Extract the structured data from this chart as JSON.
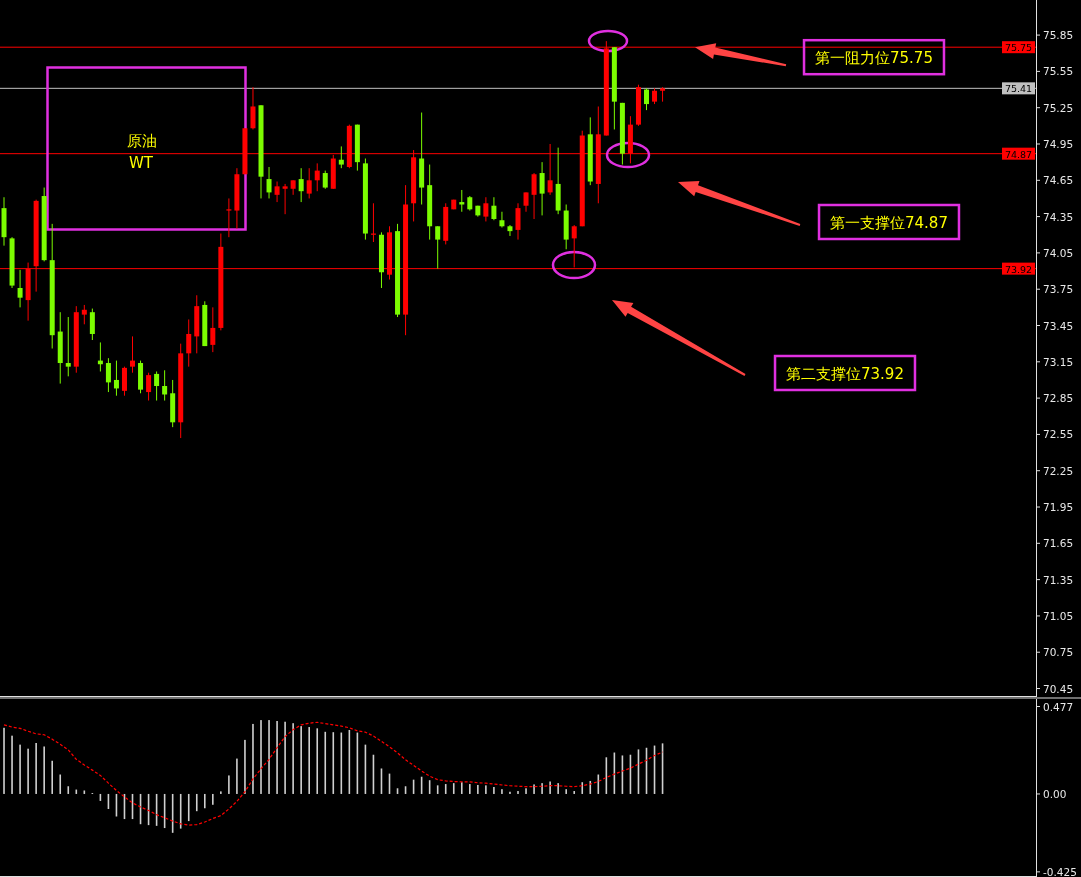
{
  "chart_data": [
    {
      "type": "candlestick",
      "tick_labels": "y",
      "categories": [
        null,
        null,
        null,
        null,
        null,
        null,
        null,
        null,
        null,
        null,
        null,
        null,
        null,
        null,
        null,
        null,
        null,
        null,
        null,
        null,
        null,
        null,
        null,
        null,
        null,
        null,
        null,
        null,
        null,
        null,
        null,
        null,
        null,
        null,
        null,
        null,
        null,
        null,
        null,
        null,
        null,
        null,
        null,
        null,
        null,
        null,
        null,
        null,
        null,
        null,
        null,
        null,
        null,
        null,
        null,
        null,
        null,
        null,
        null,
        null,
        null,
        null,
        null,
        null,
        null,
        null,
        null,
        null,
        null,
        null,
        null,
        null,
        null,
        null,
        null,
        null,
        null,
        null,
        null,
        null,
        null,
        null,
        null,
        null,
        null,
        null,
        null,
        null,
        null,
        null,
        null,
        null,
        null,
        null,
        null,
        null,
        null,
        null,
        null,
        null,
        null,
        null,
        null,
        null,
        null,
        null,
        null,
        null,
        null,
        null,
        null,
        null,
        null,
        null,
        null,
        null,
        null,
        null,
        null,
        null,
        null,
        null,
        null,
        null,
        null,
        null,
        null,
        null,
        null
      ],
      "ohlc": [
        [
          74.42,
          74.51,
          74.11,
          74.18
        ],
        [
          74.17,
          74.18,
          73.76,
          73.78
        ],
        [
          73.76,
          73.91,
          73.6,
          73.68
        ],
        [
          73.66,
          73.97,
          73.49,
          73.92
        ],
        [
          73.94,
          74.49,
          73.73,
          74.48
        ],
        [
          74.52,
          74.59,
          73.98,
          73.99
        ],
        [
          73.99,
          74.29,
          73.26,
          73.37
        ],
        [
          73.4,
          73.56,
          72.97,
          73.14
        ],
        [
          73.14,
          73.52,
          73.03,
          73.11
        ],
        [
          73.11,
          73.61,
          73.06,
          73.56
        ],
        [
          73.54,
          73.62,
          73.46,
          73.58
        ],
        [
          73.56,
          73.59,
          73.33,
          73.38
        ],
        [
          73.16,
          73.31,
          73.07,
          73.13
        ],
        [
          73.14,
          73.18,
          72.9,
          72.98
        ],
        [
          73.0,
          73.16,
          72.87,
          72.93
        ],
        [
          72.91,
          73.11,
          72.87,
          73.1
        ],
        [
          73.11,
          73.36,
          73.06,
          73.16
        ],
        [
          73.14,
          73.16,
          72.89,
          72.92
        ],
        [
          72.9,
          73.06,
          72.83,
          73.04
        ],
        [
          73.05,
          73.07,
          72.83,
          72.95
        ],
        [
          72.95,
          73.08,
          72.83,
          72.88
        ],
        [
          72.89,
          73.0,
          72.61,
          72.65
        ],
        [
          72.65,
          73.3,
          72.52,
          73.22
        ],
        [
          73.22,
          73.5,
          73.11,
          73.38
        ],
        [
          73.36,
          73.7,
          73.22,
          73.61
        ],
        [
          73.62,
          73.65,
          73.28,
          73.28
        ],
        [
          73.29,
          73.6,
          73.23,
          73.43
        ],
        [
          73.43,
          74.21,
          73.41,
          74.1
        ],
        [
          74.4,
          74.5,
          74.18,
          74.41
        ],
        [
          74.4,
          74.75,
          74.25,
          74.7
        ],
        [
          74.7,
          75.08,
          74.7,
          75.08
        ],
        [
          75.08,
          75.42,
          75.07,
          75.26
        ],
        [
          75.27,
          75.27,
          74.5,
          74.68
        ],
        [
          74.66,
          74.76,
          74.5,
          74.55
        ],
        [
          74.53,
          74.64,
          74.47,
          74.6
        ],
        [
          74.58,
          74.62,
          74.37,
          74.6
        ],
        [
          74.58,
          74.65,
          74.53,
          74.65
        ],
        [
          74.66,
          74.75,
          74.47,
          74.56
        ],
        [
          74.54,
          74.75,
          74.5,
          74.65
        ],
        [
          74.65,
          74.79,
          74.56,
          74.73
        ],
        [
          74.71,
          74.73,
          74.58,
          74.59
        ],
        [
          74.58,
          74.86,
          74.58,
          74.83
        ],
        [
          74.82,
          74.93,
          74.75,
          74.78
        ],
        [
          74.76,
          75.11,
          74.75,
          75.1
        ],
        [
          75.11,
          75.11,
          74.73,
          74.8
        ],
        [
          74.79,
          74.83,
          74.16,
          74.21
        ],
        [
          74.2,
          74.46,
          74.14,
          74.21
        ],
        [
          74.2,
          74.22,
          73.76,
          73.89
        ],
        [
          73.87,
          74.27,
          73.83,
          74.22
        ],
        [
          74.23,
          74.29,
          73.52,
          73.54
        ],
        [
          73.54,
          74.61,
          73.37,
          74.45
        ],
        [
          74.46,
          74.9,
          74.31,
          74.84
        ],
        [
          74.83,
          75.21,
          74.45,
          74.59
        ],
        [
          74.61,
          74.78,
          74.16,
          74.27
        ],
        [
          74.27,
          74.27,
          73.92,
          74.16
        ],
        [
          74.15,
          74.46,
          74.12,
          74.43
        ],
        [
          74.41,
          74.49,
          74.41,
          74.49
        ],
        [
          74.47,
          74.57,
          74.39,
          74.45
        ],
        [
          74.51,
          74.52,
          74.4,
          74.41
        ],
        [
          74.44,
          74.44,
          74.35,
          74.36
        ],
        [
          74.35,
          74.51,
          74.31,
          74.46
        ],
        [
          74.44,
          74.51,
          74.32,
          74.33
        ],
        [
          74.32,
          74.39,
          74.26,
          74.27
        ],
        [
          74.27,
          74.28,
          74.19,
          74.23
        ],
        [
          74.24,
          74.46,
          74.16,
          74.42
        ],
        [
          74.44,
          74.55,
          74.39,
          74.55
        ],
        [
          74.53,
          74.71,
          74.33,
          74.7
        ],
        [
          74.71,
          74.8,
          74.36,
          74.54
        ],
        [
          74.55,
          74.95,
          74.53,
          74.65
        ],
        [
          74.62,
          74.92,
          74.37,
          74.4
        ],
        [
          74.4,
          74.45,
          74.08,
          74.16
        ],
        [
          74.17,
          74.28,
          73.93,
          74.27
        ],
        [
          74.27,
          75.06,
          74.27,
          75.02
        ],
        [
          75.03,
          75.17,
          74.61,
          74.64
        ],
        [
          74.62,
          75.26,
          74.46,
          75.03
        ],
        [
          75.02,
          75.8,
          75.02,
          75.74
        ],
        [
          75.75,
          75.75,
          75.07,
          75.3
        ],
        [
          75.29,
          75.29,
          74.78,
          74.87
        ],
        [
          74.87,
          75.18,
          74.79,
          75.11
        ],
        [
          75.11,
          75.44,
          75.1,
          75.42
        ],
        [
          75.4,
          75.41,
          75.23,
          75.28
        ],
        [
          75.3,
          75.41,
          75.28,
          75.39
        ],
        [
          75.39,
          75.42,
          75.3,
          75.41
        ],
        null,
        null,
        null,
        null,
        null,
        null,
        null,
        null,
        null,
        null,
        null,
        null,
        null,
        null,
        null,
        null,
        null,
        null,
        null,
        null,
        null,
        null,
        null,
        null,
        null,
        null,
        null,
        null,
        null,
        null,
        null,
        null,
        null,
        null,
        null,
        null,
        null,
        null,
        null,
        null,
        null,
        null,
        null,
        null,
        null,
        null
      ],
      "colors": [
        "#7cfc00",
        "#7cfc00",
        "#7cfc00",
        "#ff0000",
        "#ff0000",
        "#7cfc00",
        "#7cfc00",
        "#7cfc00",
        "#7cfc00",
        "#ff0000",
        "#ff0000",
        "#7cfc00",
        "#7cfc00",
        "#7cfc00",
        "#7cfc00",
        "#ff0000",
        "#ff0000",
        "#7cfc00",
        "#ff0000",
        "#7cfc00",
        "#7cfc00",
        "#7cfc00",
        "#ff0000",
        "#ff0000",
        "#ff0000",
        "#7cfc00",
        "#ff0000",
        "#ff0000",
        "#ff0000",
        "#ff0000",
        "#ff0000",
        "#ff0000",
        "#7cfc00",
        "#7cfc00",
        "#ff0000",
        "#ff0000",
        "#ff0000",
        "#7cfc00",
        "#ff0000",
        "#ff0000",
        "#7cfc00",
        "#ff0000",
        "#7cfc00",
        "#ff0000",
        "#7cfc00",
        "#7cfc00",
        "#ff0000",
        "#7cfc00",
        "#ff0000",
        "#7cfc00",
        "#ff0000",
        "#ff0000",
        "#7cfc00",
        "#7cfc00",
        "#7cfc00",
        "#ff0000",
        "#ff0000",
        "#7cfc00",
        "#7cfc00",
        "#7cfc00",
        "#ff0000",
        "#7cfc00",
        "#7cfc00",
        "#7cfc00",
        "#ff0000",
        "#ff0000",
        "#ff0000",
        "#7cfc00",
        "#ff0000",
        "#7cfc00",
        "#7cfc00",
        "#ff0000",
        "#ff0000",
        "#7cfc00",
        "#ff0000",
        "#ff0000",
        "#7cfc00",
        "#7cfc00",
        "#ff0000",
        "#ff0000",
        "#7cfc00",
        "#ff0000",
        "#ff0000",
        null,
        null,
        null,
        null,
        null,
        null,
        null,
        null,
        null,
        null,
        null,
        null,
        null,
        null,
        null,
        null,
        null,
        null,
        null,
        null,
        null,
        null,
        null,
        null,
        null,
        null,
        null,
        null,
        null,
        null,
        null,
        null,
        null,
        null,
        null,
        null,
        null,
        null,
        null,
        null,
        null,
        null,
        null,
        null,
        null,
        null
      ],
      "ylim": [
        70.38,
        76.14
      ],
      "yticks": [
        75.85,
        75.55,
        75.25,
        74.95,
        74.65,
        74.35,
        74.05,
        73.75,
        73.45,
        73.15,
        72.85,
        72.55,
        72.25,
        71.95,
        71.65,
        71.35,
        71.05,
        70.75,
        70.45
      ],
      "ref_lines": [
        {
          "axis": "y",
          "value": 75.75,
          "label": "75.75",
          "color": "#ff0000"
        },
        {
          "axis": "y",
          "value": 75.41,
          "label": "75.41",
          "color": "#c0c0c0"
        },
        {
          "axis": "y",
          "value": 74.87,
          "label": "74.87",
          "color": "#ff0000"
        },
        {
          "axis": "y",
          "value": 73.92,
          "label": "73.92",
          "color": "#ff0000"
        }
      ],
      "annotations": [
        "原油",
        "WT",
        {
          "text": "第一阻力位75.75",
          "y": 75.75
        },
        "第一支撑位74.87",
        "第二支撑位73.92"
      ]
    },
    {
      "type": "bar",
      "tick_labels": "y",
      "categories": [
        null,
        null,
        null,
        null,
        null,
        null,
        null,
        null,
        null,
        null,
        null,
        null,
        null,
        null,
        null,
        null,
        null,
        null,
        null,
        null,
        null,
        null,
        null,
        null,
        null,
        null,
        null,
        null,
        null,
        null,
        null,
        null,
        null,
        null,
        null,
        null,
        null,
        null,
        null,
        null,
        null,
        null,
        null,
        null,
        null,
        null,
        null,
        null,
        null,
        null,
        null,
        null,
        null,
        null,
        null,
        null,
        null,
        null,
        null,
        null,
        null,
        null,
        null,
        null,
        null,
        null,
        null,
        null,
        null,
        null,
        null,
        null,
        null,
        null,
        null,
        null,
        null,
        null,
        null,
        null,
        null,
        null,
        null,
        null,
        null,
        null,
        null,
        null,
        null,
        null,
        null,
        null,
        null,
        null,
        null,
        null,
        null,
        null,
        null,
        null,
        null,
        null,
        null,
        null,
        null,
        null,
        null,
        null,
        null,
        null,
        null,
        null,
        null,
        null,
        null,
        null,
        null,
        null,
        null,
        null,
        null,
        null,
        null,
        null,
        null,
        null,
        null,
        null,
        null
      ],
      "series": [
        {
          "type": "bar",
          "color": "#d0d0d0",
          "values": [
            0.361,
            0.318,
            0.269,
            0.247,
            0.278,
            0.259,
            0.181,
            0.106,
            0.042,
            0.024,
            0.019,
            0.005,
            -0.038,
            -0.082,
            -0.123,
            -0.137,
            -0.137,
            -0.165,
            -0.17,
            -0.174,
            -0.186,
            -0.212,
            -0.189,
            -0.148,
            -0.094,
            -0.078,
            -0.059,
            0.014,
            0.101,
            0.193,
            0.295,
            0.382,
            0.403,
            0.403,
            0.398,
            0.394,
            0.386,
            0.37,
            0.365,
            0.358,
            0.339,
            0.337,
            0.335,
            0.349,
            0.335,
            0.269,
            0.214,
            0.139,
            0.111,
            0.031,
            0.042,
            0.078,
            0.094,
            0.075,
            0.047,
            0.054,
            0.059,
            0.064,
            0.054,
            0.049,
            0.047,
            0.038,
            0.026,
            0.012,
            0.016,
            0.031,
            0.052,
            0.059,
            0.068,
            0.059,
            0.026,
            0.016,
            0.064,
            0.071,
            0.106,
            0.2,
            0.226,
            0.21,
            0.214,
            0.243,
            0.252,
            0.264,
            0.276,
            null,
            null,
            null,
            null,
            null,
            null,
            null,
            null,
            null,
            null,
            null,
            null,
            null,
            null,
            null,
            null,
            null,
            null,
            null,
            null,
            null,
            null,
            null,
            null,
            null,
            null,
            null,
            null,
            null,
            null,
            null,
            null,
            null,
            null,
            null,
            null,
            null,
            null,
            null,
            null,
            null,
            null,
            null,
            null,
            null,
            null
          ]
        },
        {
          "type": "line",
          "color": "#ff0000",
          "line_style": "dashed",
          "values": [
            0.377,
            0.365,
            0.358,
            0.342,
            0.328,
            0.323,
            0.299,
            0.271,
            0.24,
            0.189,
            0.158,
            0.13,
            0.101,
            0.059,
            0.019,
            -0.016,
            -0.049,
            -0.071,
            -0.09,
            -0.113,
            -0.13,
            -0.148,
            -0.163,
            -0.17,
            -0.167,
            -0.153,
            -0.134,
            -0.118,
            -0.082,
            -0.04,
            0.012,
            0.082,
            0.137,
            0.189,
            0.252,
            0.313,
            0.351,
            0.377,
            0.386,
            0.391,
            0.384,
            0.377,
            0.37,
            0.361,
            0.344,
            0.337,
            0.316,
            0.287,
            0.257,
            0.224,
            0.186,
            0.156,
            0.125,
            0.097,
            0.078,
            0.071,
            0.068,
            0.066,
            0.066,
            0.061,
            0.059,
            0.054,
            0.049,
            0.045,
            0.042,
            0.04,
            0.04,
            0.042,
            0.045,
            0.045,
            0.042,
            0.04,
            0.045,
            0.054,
            0.068,
            0.09,
            0.108,
            0.125,
            0.141,
            0.163,
            0.184,
            0.21,
            0.229,
            null,
            null,
            null,
            null,
            null,
            null,
            null,
            null,
            null,
            null,
            null,
            null,
            null,
            null,
            null,
            null,
            null,
            null,
            null,
            null,
            null,
            null,
            null,
            null,
            null,
            null,
            null,
            null,
            null,
            null,
            null,
            null,
            null,
            null,
            null,
            null,
            null,
            null,
            null,
            null,
            null,
            null,
            null,
            null,
            null,
            null
          ]
        }
      ],
      "ylim": [
        -0.453,
        0.518
      ],
      "yticks": [
        0.477,
        {
          "value": 0,
          "label": "0.00"
        },
        -0.425
      ]
    }
  ]
}
